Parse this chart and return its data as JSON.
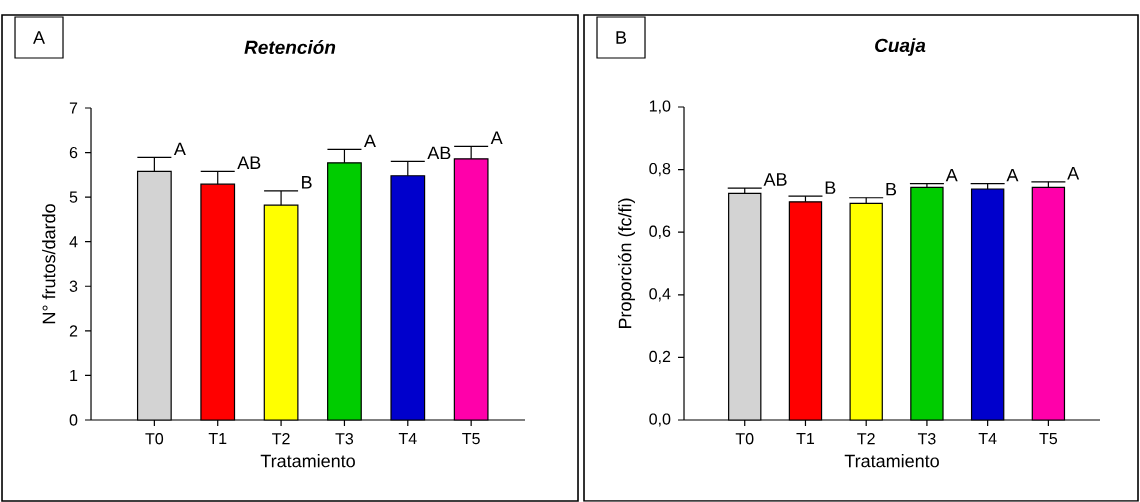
{
  "chart_data": [
    {
      "type": "bar",
      "title": "Retención",
      "xlabel": "Tratamiento",
      "ylabel": "N° frutos/dardo",
      "categories": [
        "T0",
        "T1",
        "T2",
        "T3",
        "T4",
        "T5"
      ],
      "values": [
        5.58,
        5.29,
        4.82,
        5.77,
        5.48,
        5.86
      ],
      "errors": [
        [
          5.58,
          5.89
        ],
        [
          5.29,
          5.58
        ],
        [
          4.82,
          5.14
        ],
        [
          5.77,
          6.07
        ],
        [
          5.48,
          5.8
        ],
        [
          5.86,
          6.14
        ]
      ],
      "colors": [
        "#d3d3d3",
        "#ff0000",
        "#ffff00",
        "#00cc00",
        "#0000cc",
        "#ff00aa"
      ],
      "ylim": [
        0,
        7
      ],
      "yticks": [
        0,
        1,
        2,
        3,
        4,
        5,
        6,
        7
      ],
      "annotations": [
        "A",
        {
          "text": "A",
          "x": "T0",
          "y": 5.89
        },
        {
          "text": "AB",
          "x": "T1",
          "y": 5.58
        },
        {
          "text": "B",
          "x": "T2",
          "y": 5.14
        },
        {
          "text": "A",
          "x": "T3",
          "y": 6.07
        },
        {
          "text": "AB",
          "x": "T4",
          "y": 5.8
        },
        {
          "text": "A",
          "x": "T5",
          "y": 6.14
        }
      ]
    },
    {
      "type": "bar",
      "title": "Cuaja",
      "xlabel": "Tratamiento",
      "ylabel": "Proporción (fc/fi)",
      "categories": [
        "T0",
        "T1",
        "T2",
        "T3",
        "T4",
        "T5"
      ],
      "values": [
        0.724,
        0.697,
        0.692,
        0.743,
        0.738,
        0.743
      ],
      "errors": [
        [
          0.724,
          0.741
        ],
        [
          0.697,
          0.715
        ],
        [
          0.692,
          0.71
        ],
        [
          0.743,
          0.755
        ],
        [
          0.738,
          0.755
        ],
        [
          0.743,
          0.761
        ]
      ],
      "colors": [
        "#d3d3d3",
        "#ff0000",
        "#ffff00",
        "#00cc00",
        "#0000cc",
        "#ff00aa"
      ],
      "ylim": [
        0,
        1.0
      ],
      "yticks": [
        {
          "value": 0,
          "label": "0,0"
        },
        {
          "value": 0.2,
          "label": "0,2"
        },
        {
          "value": 0.4,
          "label": "0,4"
        },
        {
          "value": 0.6,
          "label": "0,6"
        },
        {
          "value": 0.8,
          "label": "0,8"
        },
        {
          "value": 1.0,
          "label": "1,0"
        }
      ],
      "annotations": [
        "B",
        {
          "text": "AB",
          "x": "T0",
          "y": 0.741
        },
        {
          "text": "B",
          "x": "T1",
          "y": 0.715
        },
        {
          "text": "B",
          "x": "T2",
          "y": 0.71
        },
        {
          "text": "A",
          "x": "T3",
          "y": 0.755
        },
        {
          "text": "A",
          "x": "T4",
          "y": 0.755
        },
        {
          "text": "A",
          "x": "T5",
          "y": 0.761
        }
      ]
    }
  ]
}
